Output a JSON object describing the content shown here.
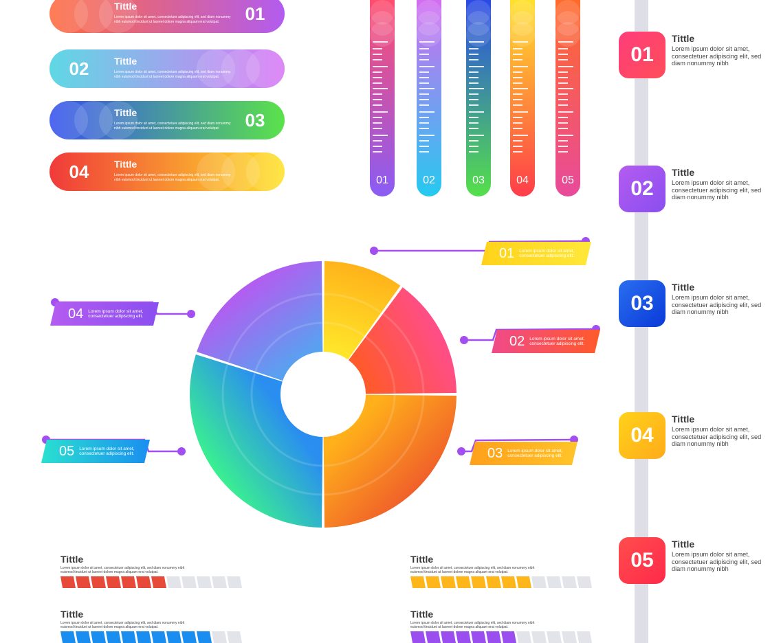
{
  "banners": [
    {
      "number": "01",
      "title": "Tittle",
      "text": "Lorem ipsum dolor sit amet, consectetuer adipiscing elit, sed diam nonummy nibh euismod tincidunt ut laoreet dolore magna aliquam erat volutpat.",
      "color_from": "#ff6a3d",
      "color_to": "#b25cf0"
    },
    {
      "number": "02",
      "title": "Tittle",
      "text": "Lorem ipsum dolor sit amet, consectetuer adipiscing elit, sed diam nonummy nibh euismod tincidunt ut laoreet dolore magna aliquam erat volutpat.",
      "color_from": "#5fd8e4",
      "color_to": "#d977f5"
    },
    {
      "number": "03",
      "title": "Tittle",
      "text": "Lorem ipsum dolor sit amet, consectetuer adipiscing elit, sed diam nonummy nibh euismod tincidunt ut laoreet dolore magna aliquam erat volutpat.",
      "color_from": "#3550f0",
      "color_to": "#5be24a"
    },
    {
      "number": "04",
      "title": "Tittle",
      "text": "Lorem ipsum dolor sit amet, consectetuer adipiscing elit, sed diam nonummy nibh euismod tincidunt ut laoreet dolore magna aliquam erat volutpat.",
      "color_from": "#f03a3a",
      "color_to": "#ffe32a"
    }
  ],
  "thermometers": [
    {
      "number": "01",
      "color_top": "#ff4d6d",
      "color_bottom": "#8a5cf5"
    },
    {
      "number": "02",
      "color_top": "#d36cf0",
      "color_bottom": "#25c9f0"
    },
    {
      "number": "03",
      "color_top": "#2a49e8",
      "color_bottom": "#55e04a"
    },
    {
      "number": "04",
      "color_top": "#ffe12a",
      "color_bottom": "#ff3d4a"
    },
    {
      "number": "05",
      "color_top": "#ff6a2a",
      "color_bottom": "#e84a9a"
    }
  ],
  "timeline": [
    {
      "number": "01",
      "title": "Tittle",
      "text": "Lorem ipsum dolor sit amet, consectetuer adipiscing elit, sed diam nonummy nibh",
      "color_from": "#ff3d7a",
      "color_to": "#ff4d5a"
    },
    {
      "number": "02",
      "title": "Tittle",
      "text": "Lorem ipsum dolor sit amet, consectetuer adipiscing elit, sed diam nonummy nibh",
      "color_from": "#b45cf0",
      "color_to": "#8a4ef0"
    },
    {
      "number": "03",
      "title": "Tittle",
      "text": "Lorem ipsum dolor sit amet, consectetuer adipiscing elit, sed diam nonummy nibh",
      "color_from": "#2a6ef0",
      "color_to": "#0a3ad8"
    },
    {
      "number": "04",
      "title": "Tittle",
      "text": "Lorem ipsum dolor sit amet, consectetuer adipiscing elit, sed diam nonummy nibh",
      "color_from": "#ffd21a",
      "color_to": "#ffab1a"
    },
    {
      "number": "05",
      "title": "Tittle",
      "text": "Lorem ipsum dolor sit amet, consectetuer adipiscing elit, sed diam nonummy nibh",
      "color_from": "#ff4d4d",
      "color_to": "#ff2a4a"
    }
  ],
  "donut": {
    "segments": [
      {
        "number": "01",
        "value": 10,
        "color_from": "#ffe62a",
        "color_to": "#ffb21a"
      },
      {
        "number": "02",
        "value": 15,
        "color_from": "#ff5a2a",
        "color_to": "#ff4d8a"
      },
      {
        "number": "03",
        "value": 25,
        "color_from": "#ffb01a",
        "color_to": "#f0602a"
      },
      {
        "number": "05",
        "value": 30,
        "color_from": "#2a8ef0",
        "color_to": "#3af090"
      },
      {
        "number": "04",
        "value": 20,
        "color_from": "#5aa0f0",
        "color_to": "#b45cf0"
      }
    ]
  },
  "callouts": [
    {
      "number": "01",
      "text": "Lorem ipsum dolor sit amet, consectetuer adipiscing elit.",
      "color_from": "#ffd21a",
      "color_to": "#ffe83a",
      "line_color": "#a24ef0"
    },
    {
      "number": "02",
      "text": "Lorem ipsum dolor sit amet, consectetuer adipiscing elit.",
      "color_from": "#f04a8a",
      "color_to": "#ff5a2a",
      "line_color": "#a24ef0"
    },
    {
      "number": "03",
      "text": "Lorem ipsum dolor sit amet, consectetuer adipiscing elit.",
      "color_from": "#ffa01a",
      "color_to": "#ffc42a",
      "line_color": "#a24ef0"
    },
    {
      "number": "04",
      "text": "Lorem ipsum dolor sit amet, consectetuer adipiscing elit.",
      "color_from": "#b45cf0",
      "color_to": "#8a4ef0",
      "line_color": "#a24ef0"
    },
    {
      "number": "05",
      "text": "Lorem ipsum dolor sit amet, consectetuer adipiscing elit.",
      "color_from": "#2ae0d0",
      "color_to": "#1a8ef0",
      "line_color": "#a24ef0"
    }
  ],
  "progress": [
    {
      "title": "Tittle",
      "text": "Lorem ipsum dolor sit amet, consectetuer adipiscing elit, sed diam nonummy nibh euismod tincidunt ut laoreet dolore magna aliquam erat volutpat.",
      "filled": 7,
      "total": 12,
      "color": "#e84a3a"
    },
    {
      "title": "Tittle",
      "text": "Lorem ipsum dolor sit amet, consectetuer adipiscing elit, sed diam nonummy nibh euismod tincidunt ut laoreet dolore magna aliquam erat volutpat.",
      "filled": 8,
      "total": 12,
      "color": "#ffb61a"
    },
    {
      "title": "Tittle",
      "text": "Lorem ipsum dolor sit amet, consectetuer adipiscing elit, sed diam nonummy nibh euismod tincidunt ut laoreet dolore magna aliquam erat volutpat.",
      "filled": 10,
      "total": 12,
      "color": "#1a8ef0"
    },
    {
      "title": "Tittle",
      "text": "Lorem ipsum dolor sit amet, consectetuer adipiscing elit, sed diam nonummy nibh euismod tincidunt ut laoreet dolore magna aliquam erat volutpat.",
      "filled": 7,
      "total": 12,
      "color": "#9a4ef0"
    }
  ],
  "colors": {
    "segment_empty": "#e3e3ea",
    "timeline_bar": "#dedee6"
  }
}
